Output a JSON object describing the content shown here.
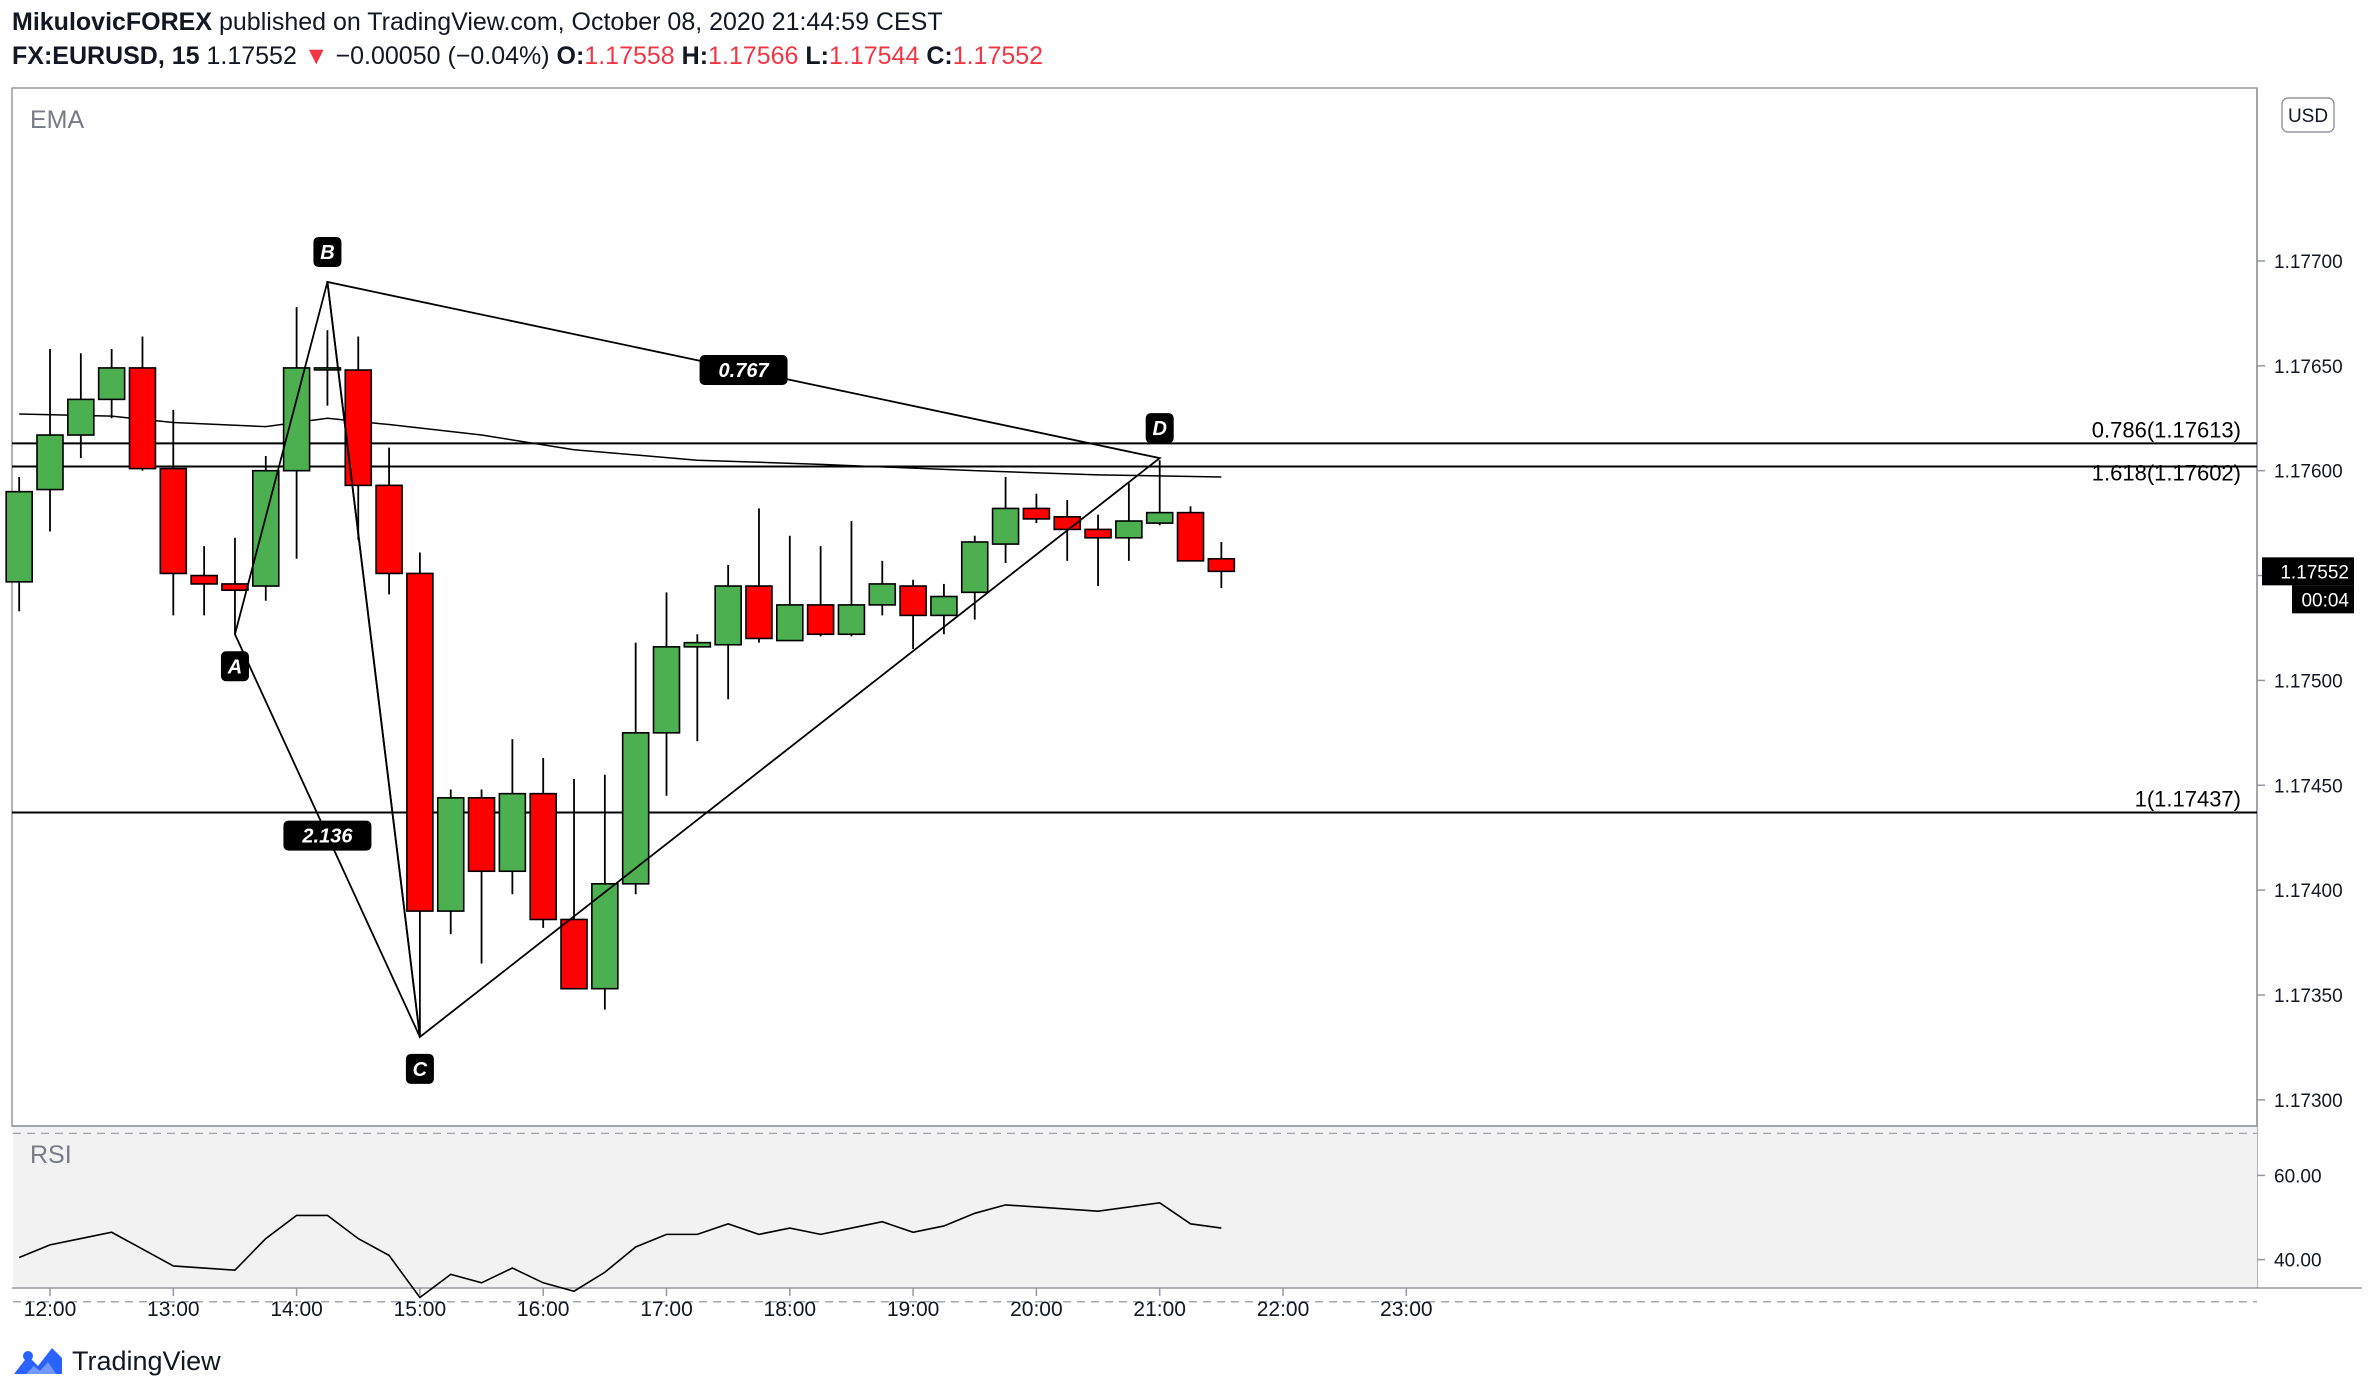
{
  "header": {
    "author": "MikulovicFOREX",
    "published": "published on TradingView.com, October 08, 2020 21:44:59 CEST",
    "symbol": "FX:EURUSD, 15",
    "last": "1.17552",
    "change_arrow": "▼",
    "change": "−0.00050 (−0.04%)",
    "o_label": "O:",
    "o_value": "1.17558",
    "h_label": "H:",
    "h_value": "1.17566",
    "l_label": "L:",
    "l_value": "1.17544",
    "c_label": "C:",
    "c_value": "1.17552"
  },
  "footer": {
    "brand": "TradingView"
  },
  "colors": {
    "up": "#4caf50",
    "down": "#ff0000",
    "line": "#000000",
    "text": "#131722",
    "rsi_bg": "#f2f2f2",
    "red_text": "#f23645"
  },
  "chart_data": {
    "type": "candlestick",
    "main_pane": {
      "indicator_label": "EMA",
      "currency_label": "USD",
      "ylim": [
        1.17288,
        1.17782
      ],
      "y_ticks": [
        1.177,
        1.1765,
        1.176,
        1.1755,
        1.175,
        1.1745,
        1.174,
        1.1735,
        1.173
      ],
      "y_tick_labels": [
        "1.17700",
        "1.17650",
        "1.17600",
        "1.17550",
        "1.17500",
        "1.17450",
        "1.17400",
        "1.17350",
        "1.17300"
      ],
      "price_label": "1.17552",
      "countdown_label": "00:04",
      "candles": [
        {
          "t": "11:45",
          "o": 1.17547,
          "h": 1.17597,
          "l": 1.17533,
          "c": 1.1759
        },
        {
          "t": "12:00",
          "o": 1.17591,
          "h": 1.17658,
          "l": 1.17571,
          "c": 1.17617
        },
        {
          "t": "12:15",
          "o": 1.17617,
          "h": 1.17656,
          "l": 1.17606,
          "c": 1.17634
        },
        {
          "t": "12:30",
          "o": 1.17634,
          "h": 1.17658,
          "l": 1.17625,
          "c": 1.17649
        },
        {
          "t": "12:45",
          "o": 1.17649,
          "h": 1.17664,
          "l": 1.176,
          "c": 1.17601
        },
        {
          "t": "13:00",
          "o": 1.17601,
          "h": 1.17629,
          "l": 1.17531,
          "c": 1.17551
        },
        {
          "t": "13:15",
          "o": 1.1755,
          "h": 1.17564,
          "l": 1.17531,
          "c": 1.17546
        },
        {
          "t": "13:30",
          "o": 1.17546,
          "h": 1.17568,
          "l": 1.17522,
          "c": 1.17543
        },
        {
          "t": "13:45",
          "o": 1.17545,
          "h": 1.17607,
          "l": 1.17538,
          "c": 1.176
        },
        {
          "t": "14:00",
          "o": 1.176,
          "h": 1.17678,
          "l": 1.17558,
          "c": 1.17649
        },
        {
          "t": "14:15",
          "o": 1.17649,
          "h": 1.17667,
          "l": 1.17631,
          "c": 1.17649
        },
        {
          "t": "14:30",
          "o": 1.17648,
          "h": 1.17664,
          "l": 1.17567,
          "c": 1.17593
        },
        {
          "t": "14:45",
          "o": 1.17593,
          "h": 1.17611,
          "l": 1.17541,
          "c": 1.17551
        },
        {
          "t": "15:00",
          "o": 1.17551,
          "h": 1.17561,
          "l": 1.1733,
          "c": 1.1739
        },
        {
          "t": "15:15",
          "o": 1.1739,
          "h": 1.17448,
          "l": 1.17379,
          "c": 1.17444
        },
        {
          "t": "15:30",
          "o": 1.17444,
          "h": 1.17448,
          "l": 1.17365,
          "c": 1.17409
        },
        {
          "t": "15:45",
          "o": 1.17409,
          "h": 1.17472,
          "l": 1.17398,
          "c": 1.17446
        },
        {
          "t": "16:00",
          "o": 1.17446,
          "h": 1.17463,
          "l": 1.17382,
          "c": 1.17386
        },
        {
          "t": "16:15",
          "o": 1.17386,
          "h": 1.17453,
          "l": 1.17353,
          "c": 1.17353
        },
        {
          "t": "16:30",
          "o": 1.17353,
          "h": 1.17455,
          "l": 1.17343,
          "c": 1.17403
        },
        {
          "t": "16:45",
          "o": 1.17403,
          "h": 1.17518,
          "l": 1.17398,
          "c": 1.17475
        },
        {
          "t": "17:00",
          "o": 1.17475,
          "h": 1.17542,
          "l": 1.17445,
          "c": 1.17516
        },
        {
          "t": "17:15",
          "o": 1.17516,
          "h": 1.17522,
          "l": 1.17471,
          "c": 1.17518
        },
        {
          "t": "17:30",
          "o": 1.17517,
          "h": 1.17555,
          "l": 1.17491,
          "c": 1.17545
        },
        {
          "t": "17:45",
          "o": 1.17545,
          "h": 1.17582,
          "l": 1.17518,
          "c": 1.1752
        },
        {
          "t": "18:00",
          "o": 1.17519,
          "h": 1.17569,
          "l": 1.17519,
          "c": 1.17536
        },
        {
          "t": "18:15",
          "o": 1.17536,
          "h": 1.17564,
          "l": 1.17521,
          "c": 1.17522
        },
        {
          "t": "18:30",
          "o": 1.17522,
          "h": 1.17576,
          "l": 1.17521,
          "c": 1.17536
        },
        {
          "t": "18:45",
          "o": 1.17536,
          "h": 1.17557,
          "l": 1.17531,
          "c": 1.17546
        },
        {
          "t": "19:00",
          "o": 1.17545,
          "h": 1.17548,
          "l": 1.17515,
          "c": 1.17531
        },
        {
          "t": "19:15",
          "o": 1.17531,
          "h": 1.17546,
          "l": 1.17522,
          "c": 1.1754
        },
        {
          "t": "19:30",
          "o": 1.17542,
          "h": 1.17569,
          "l": 1.17529,
          "c": 1.17566
        },
        {
          "t": "19:45",
          "o": 1.17565,
          "h": 1.17597,
          "l": 1.17556,
          "c": 1.17582
        },
        {
          "t": "20:00",
          "o": 1.17582,
          "h": 1.17589,
          "l": 1.17575,
          "c": 1.17577
        },
        {
          "t": "20:15",
          "o": 1.17578,
          "h": 1.17586,
          "l": 1.17557,
          "c": 1.17572
        },
        {
          "t": "20:30",
          "o": 1.17572,
          "h": 1.17579,
          "l": 1.17545,
          "c": 1.17568
        },
        {
          "t": "20:45",
          "o": 1.17568,
          "h": 1.17594,
          "l": 1.17557,
          "c": 1.17576
        },
        {
          "t": "21:00",
          "o": 1.17575,
          "h": 1.17605,
          "l": 1.17574,
          "c": 1.1758
        },
        {
          "t": "21:15",
          "o": 1.1758,
          "h": 1.17583,
          "l": 1.17557,
          "c": 1.17557
        },
        {
          "t": "21:30",
          "o": 1.17558,
          "h": 1.17566,
          "l": 1.17544,
          "c": 1.17552
        }
      ],
      "ema_points": [
        {
          "t": "11:45",
          "v": 1.17627
        },
        {
          "t": "12:30",
          "v": 1.17626
        },
        {
          "t": "13:00",
          "v": 1.17623
        },
        {
          "t": "13:45",
          "v": 1.17621
        },
        {
          "t": "14:15",
          "v": 1.17625
        },
        {
          "t": "14:45",
          "v": 1.17622
        },
        {
          "t": "15:30",
          "v": 1.17617
        },
        {
          "t": "16:15",
          "v": 1.1761
        },
        {
          "t": "17:15",
          "v": 1.17605
        },
        {
          "t": "18:15",
          "v": 1.17603
        },
        {
          "t": "19:30",
          "v": 1.176
        },
        {
          "t": "20:30",
          "v": 1.17598
        },
        {
          "t": "21:30",
          "v": 1.17597
        }
      ],
      "horizontal_levels": [
        {
          "label": "0.786(1.17613)",
          "value": 1.17613
        },
        {
          "label": "1.618(1.17602)",
          "value": 1.17602
        },
        {
          "label": "1(1.17437)",
          "value": 1.17437
        }
      ],
      "pattern_points": [
        {
          "label": "A",
          "t": "13:30",
          "value": 1.17522
        },
        {
          "label": "B",
          "t": "14:15",
          "value": 1.1769
        },
        {
          "label": "C",
          "t": "15:00",
          "value": 1.1733
        },
        {
          "label": "D",
          "t": "21:00",
          "value": 1.17606
        }
      ],
      "ratios": [
        {
          "label": "0.767",
          "between": [
            "B",
            "D"
          ]
        },
        {
          "label": "2.136",
          "between": [
            "A",
            "C"
          ]
        }
      ]
    },
    "rsi_pane": {
      "indicator_label": "RSI",
      "ylim": [
        33.5,
        71.5
      ],
      "bands": [
        70,
        30
      ],
      "y_ticks": [
        60,
        40
      ],
      "y_tick_labels": [
        "60.00",
        "40.00"
      ],
      "values": [
        {
          "t": "11:45",
          "v": 40.5
        },
        {
          "t": "12:00",
          "v": 43.5
        },
        {
          "t": "12:15",
          "v": 45.0
        },
        {
          "t": "12:30",
          "v": 46.5
        },
        {
          "t": "12:45",
          "v": 42.5
        },
        {
          "t": "13:00",
          "v": 38.5
        },
        {
          "t": "13:15",
          "v": 38.0
        },
        {
          "t": "13:30",
          "v": 37.5
        },
        {
          "t": "13:45",
          "v": 45.0
        },
        {
          "t": "14:00",
          "v": 50.5
        },
        {
          "t": "14:15",
          "v": 50.5
        },
        {
          "t": "14:30",
          "v": 45.0
        },
        {
          "t": "14:45",
          "v": 41.0
        },
        {
          "t": "15:00",
          "v": 31.0
        },
        {
          "t": "15:15",
          "v": 36.5
        },
        {
          "t": "15:30",
          "v": 34.5
        },
        {
          "t": "15:45",
          "v": 38.0
        },
        {
          "t": "16:00",
          "v": 34.5
        },
        {
          "t": "16:15",
          "v": 32.5
        },
        {
          "t": "16:30",
          "v": 37.0
        },
        {
          "t": "16:45",
          "v": 43.0
        },
        {
          "t": "17:00",
          "v": 46.0
        },
        {
          "t": "17:15",
          "v": 46.0
        },
        {
          "t": "17:30",
          "v": 48.5
        },
        {
          "t": "17:45",
          "v": 46.0
        },
        {
          "t": "18:00",
          "v": 47.5
        },
        {
          "t": "18:15",
          "v": 46.0
        },
        {
          "t": "18:30",
          "v": 47.5
        },
        {
          "t": "18:45",
          "v": 49.0
        },
        {
          "t": "19:00",
          "v": 46.5
        },
        {
          "t": "19:15",
          "v": 48.0
        },
        {
          "t": "19:30",
          "v": 51.0
        },
        {
          "t": "19:45",
          "v": 53.0
        },
        {
          "t": "20:30",
          "v": 51.5
        },
        {
          "t": "21:00",
          "v": 53.5
        },
        {
          "t": "21:15",
          "v": 48.5
        },
        {
          "t": "21:30",
          "v": 47.5
        }
      ]
    },
    "x_axis": {
      "ticks": [
        "12:00",
        "13:00",
        "14:00",
        "15:00",
        "16:00",
        "17:00",
        "18:00",
        "19:00",
        "20:00",
        "21:00",
        "22:00",
        "23:00"
      ]
    }
  }
}
